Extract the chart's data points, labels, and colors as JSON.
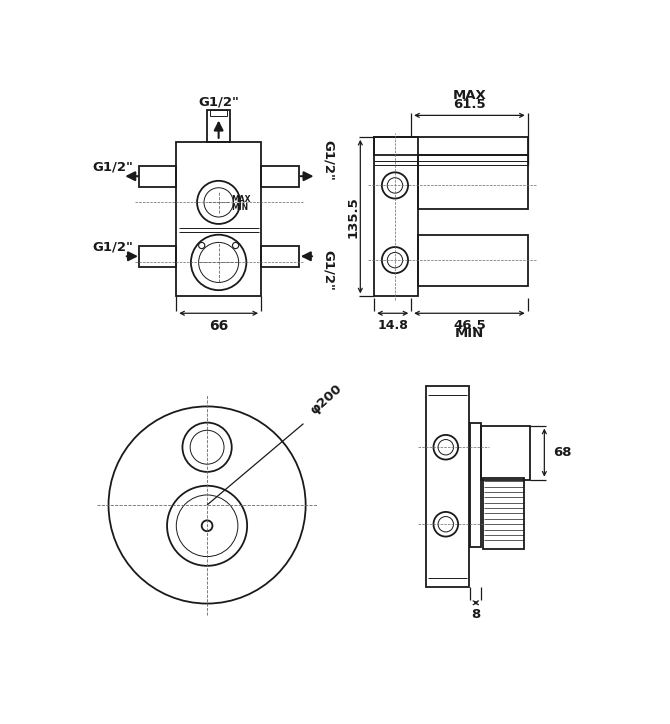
{
  "bg_color": "#ffffff",
  "line_color": "#1a1a1a",
  "dim_color": "#1a1a1a",
  "dashed_color": "#666666",
  "dimensions": {
    "width_66": "66",
    "height_135": "135.5",
    "depth_max_61": "61.5",
    "depth_min_46": "46.5",
    "depth_14": "14.8",
    "diam_200": "φ200",
    "depth_68": "68",
    "base_8": "8",
    "max_label": "MAX",
    "min_label": "MIN",
    "g12": "G1/2\""
  }
}
